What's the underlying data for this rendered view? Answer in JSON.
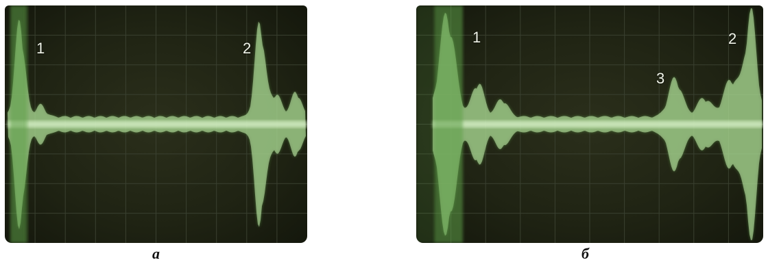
{
  "figure": {
    "panel_a": {
      "caption": "a",
      "markers": [
        "1",
        "2"
      ]
    },
    "panel_b": {
      "caption": "б",
      "markers": [
        "1",
        "2",
        "3"
      ]
    }
  },
  "colors": {
    "trace": "#c8f0b0",
    "trace_glow": "#5fa04a",
    "screen": "#23271a",
    "grid": "#3a4030"
  }
}
